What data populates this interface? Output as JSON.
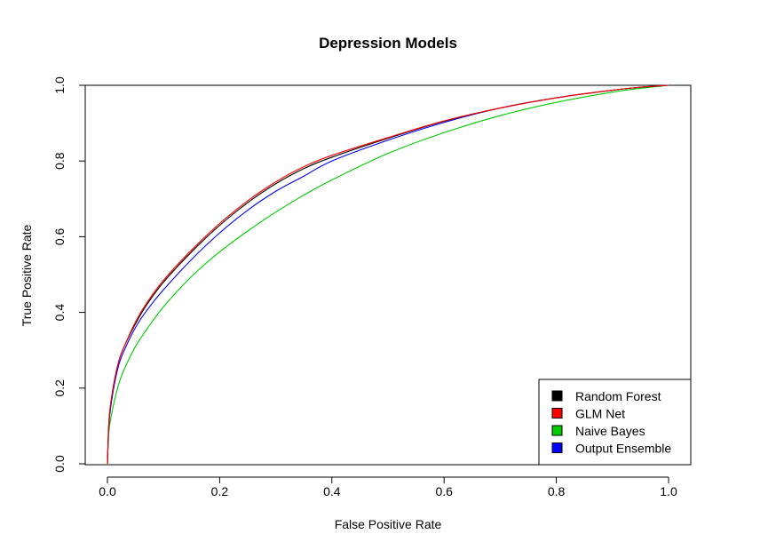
{
  "chart_data": {
    "type": "line",
    "title": "Depression Models",
    "xlabel": "False Positive Rate",
    "ylabel": "True Positive Rate",
    "xlim": [
      0,
      1
    ],
    "ylim": [
      0,
      1
    ],
    "xticks": [
      "0.0",
      "0.2",
      "0.4",
      "0.6",
      "0.8",
      "1.0"
    ],
    "yticks": [
      "0.0",
      "0.2",
      "0.4",
      "0.6",
      "0.8",
      "1.0"
    ],
    "grid": false,
    "legend_position": "bottom-right",
    "series": [
      {
        "name": "Random Forest",
        "color": "#000000",
        "x": [
          0,
          0.003,
          0.01,
          0.02,
          0.03,
          0.05,
          0.07,
          0.1,
          0.15,
          0.2,
          0.25,
          0.3,
          0.35,
          0.4,
          0.5,
          0.6,
          0.7,
          0.8,
          0.9,
          0.95,
          1.0
        ],
        "y": [
          0,
          0.12,
          0.2,
          0.27,
          0.31,
          0.37,
          0.42,
          0.48,
          0.56,
          0.63,
          0.69,
          0.74,
          0.78,
          0.81,
          0.86,
          0.905,
          0.94,
          0.967,
          0.987,
          0.995,
          1.0
        ]
      },
      {
        "name": "GLM Net",
        "color": "#ff0000",
        "x": [
          0,
          0.003,
          0.01,
          0.02,
          0.03,
          0.05,
          0.07,
          0.1,
          0.15,
          0.2,
          0.25,
          0.3,
          0.35,
          0.4,
          0.5,
          0.6,
          0.7,
          0.8,
          0.9,
          0.95,
          1.0
        ],
        "y": [
          0,
          0.12,
          0.2,
          0.27,
          0.31,
          0.375,
          0.425,
          0.485,
          0.565,
          0.635,
          0.695,
          0.745,
          0.785,
          0.815,
          0.862,
          0.906,
          0.94,
          0.967,
          0.987,
          0.995,
          1.0
        ]
      },
      {
        "name": "Naive Bayes",
        "color": "#00cc00",
        "x": [
          0,
          0.003,
          0.01,
          0.02,
          0.03,
          0.05,
          0.07,
          0.1,
          0.15,
          0.2,
          0.25,
          0.3,
          0.35,
          0.4,
          0.5,
          0.6,
          0.7,
          0.8,
          0.9,
          0.95,
          1.0
        ],
        "y": [
          0,
          0.09,
          0.15,
          0.21,
          0.25,
          0.31,
          0.355,
          0.415,
          0.495,
          0.56,
          0.615,
          0.665,
          0.71,
          0.75,
          0.82,
          0.875,
          0.92,
          0.955,
          0.982,
          0.992,
          1.0
        ]
      },
      {
        "name": "Output Ensemble",
        "color": "#0000ff",
        "x": [
          0,
          0.003,
          0.01,
          0.02,
          0.03,
          0.05,
          0.07,
          0.1,
          0.15,
          0.2,
          0.25,
          0.3,
          0.35,
          0.4,
          0.5,
          0.6,
          0.7,
          0.8,
          0.9,
          0.95,
          1.0
        ],
        "y": [
          0,
          0.11,
          0.19,
          0.26,
          0.3,
          0.36,
          0.405,
          0.46,
          0.54,
          0.61,
          0.67,
          0.72,
          0.76,
          0.8,
          0.855,
          0.902,
          0.94,
          0.967,
          0.987,
          0.995,
          1.0
        ]
      }
    ]
  }
}
